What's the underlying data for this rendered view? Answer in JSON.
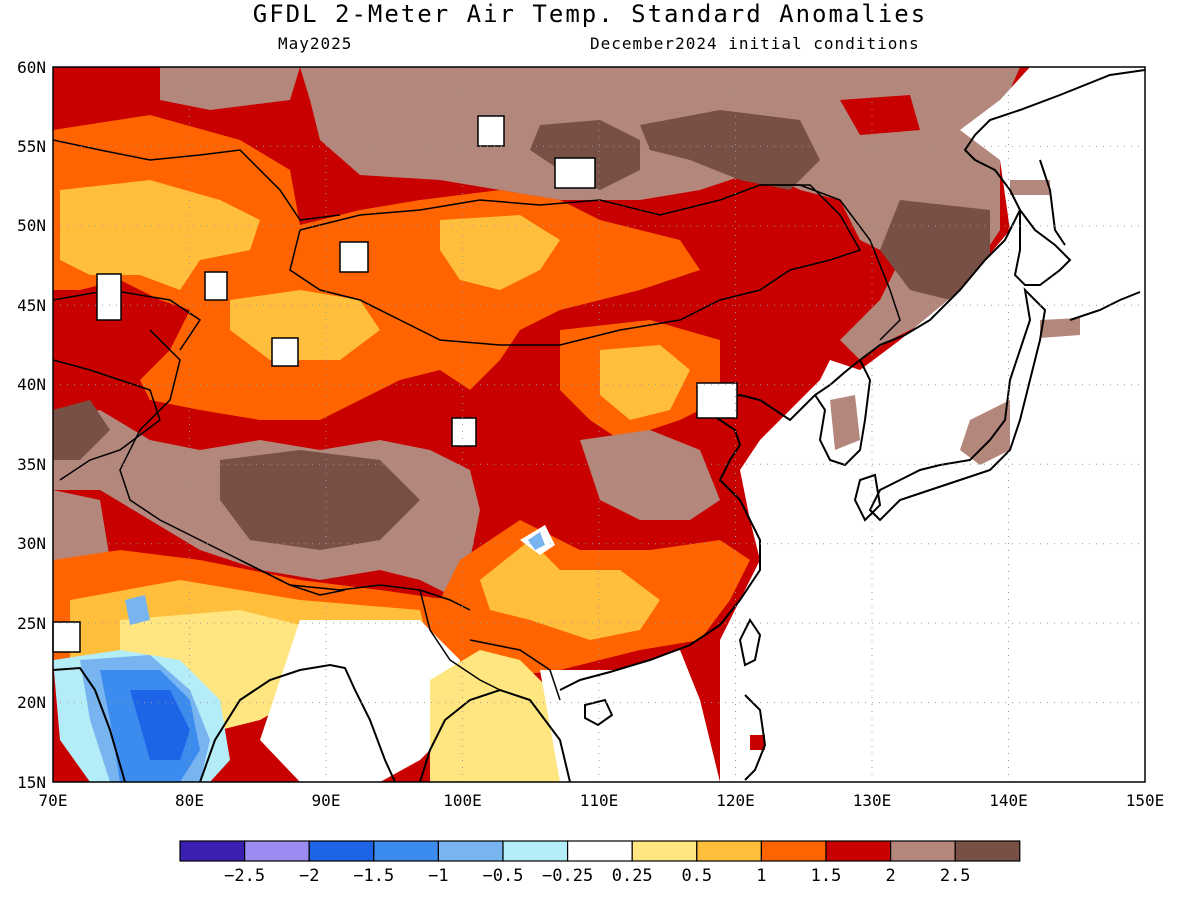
{
  "header": {
    "title": "GFDL 2-Meter Air Temp. Standard Anomalies",
    "valid": "May2025",
    "init": "December2024 initial conditions"
  },
  "map": {
    "region": "East and South Asia",
    "lon_range": [
      70,
      150
    ],
    "lat_range": [
      15,
      60
    ],
    "lon_ticks": [
      "70E",
      "80E",
      "90E",
      "100E",
      "110E",
      "120E",
      "130E",
      "140E",
      "150E"
    ],
    "lat_ticks": [
      "15N",
      "20N",
      "25N",
      "30N",
      "35N",
      "40N",
      "45N",
      "50N",
      "55N",
      "60N"
    ],
    "gridlines": "dotted"
  },
  "colorbar": {
    "colors": [
      "#3a1fb0",
      "#9a8cf0",
      "#1e64e6",
      "#3c8cf0",
      "#78b4f0",
      "#b4ecf8",
      "#ffffff",
      "#ffe680",
      "#ffbe3c",
      "#ff6400",
      "#c80000",
      "#b4877d",
      "#785046"
    ],
    "labels": [
      "-2.5",
      "-2",
      "-1.5",
      "-1",
      "-0.5",
      "-0.25",
      "0.25",
      "0.5",
      "1",
      "1.5",
      "2",
      "2.5"
    ]
  }
}
